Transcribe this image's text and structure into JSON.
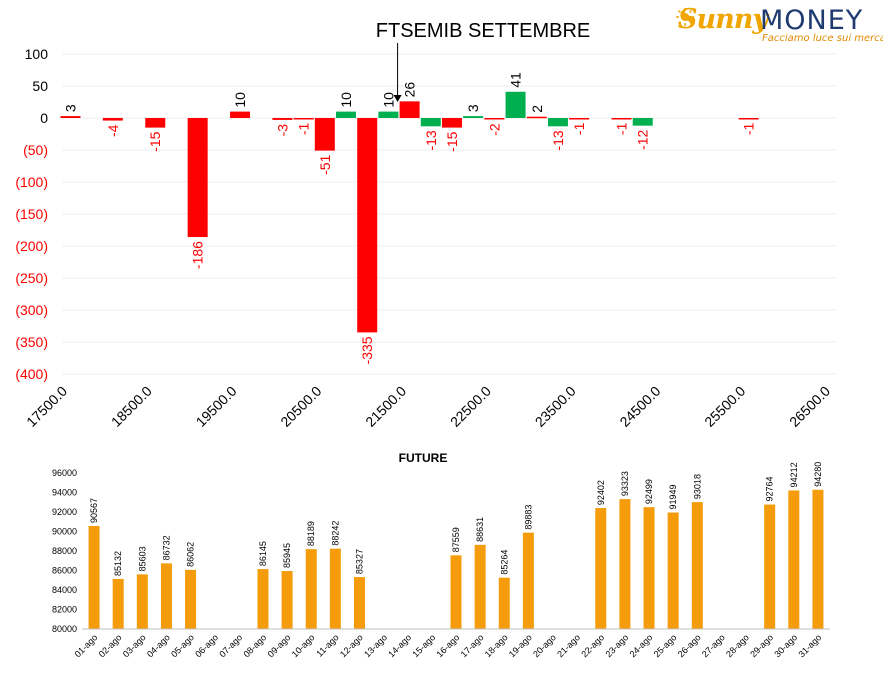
{
  "logo": {
    "brand_left": "Sunny",
    "brand_right": "MONEY",
    "tagline": "Facciamo luce sui mercati",
    "colors": {
      "sunny": "#f0a500",
      "money": "#1f3b70",
      "tagline": "#e08a00"
    }
  },
  "chart_data": [
    {
      "type": "bar",
      "title": "FTSEMIB SETTEMBRE",
      "xlabel": "",
      "ylabel": "",
      "xlim": [
        17500,
        26500
      ],
      "ylim": [
        -400,
        100
      ],
      "x_ticks": [
        "17500.0",
        "18500.0",
        "19500.0",
        "20500.0",
        "21500.0",
        "22500.0",
        "23500.0",
        "24500.0",
        "25500.0",
        "26500.0"
      ],
      "y_ticks": [
        {
          "value": 100,
          "label": "100"
        },
        {
          "value": 50,
          "label": "50"
        },
        {
          "value": 0,
          "label": "0"
        },
        {
          "value": -50,
          "label": "(50)"
        },
        {
          "value": -100,
          "label": "(100)"
        },
        {
          "value": -150,
          "label": "(150)"
        },
        {
          "value": -200,
          "label": "(200)"
        },
        {
          "value": -250,
          "label": "(250)"
        },
        {
          "value": -300,
          "label": "(300)"
        },
        {
          "value": -350,
          "label": "(350)"
        },
        {
          "value": -400,
          "label": "(400)"
        }
      ],
      "grid": true,
      "annotation": {
        "text": "FTSEMIB SETTEMBRE",
        "points_to_x": 21600
      },
      "colors": {
        "red": "#ff0000",
        "green": "#00b050",
        "negative_label": "#ff0000",
        "positive_label": "#000000"
      },
      "bars": [
        {
          "x": 17600,
          "value": 3,
          "label": "3",
          "color": "red"
        },
        {
          "x": 18100,
          "value": -4,
          "label": "-4",
          "color": "red"
        },
        {
          "x": 18600,
          "value": -15,
          "label": "-15",
          "color": "red"
        },
        {
          "x": 19100,
          "value": -186,
          "label": "-186",
          "color": "red"
        },
        {
          "x": 19600,
          "value": 10,
          "label": "10",
          "color": "red"
        },
        {
          "x": 20100,
          "value": -3,
          "label": "-3",
          "color": "red"
        },
        {
          "x": 20350,
          "value": -1,
          "label": "-1",
          "color": "red"
        },
        {
          "x": 20600,
          "value": -51,
          "label": "-51",
          "color": "red"
        },
        {
          "x": 20850,
          "value": 10,
          "label": "10",
          "color": "green"
        },
        {
          "x": 21100,
          "value": -335,
          "label": "-335",
          "color": "red"
        },
        {
          "x": 21350,
          "value": 10,
          "label": "10",
          "color": "green"
        },
        {
          "x": 21600,
          "value": 26,
          "label": "26",
          "color": "red"
        },
        {
          "x": 21850,
          "value": -13,
          "label": "-13",
          "color": "green"
        },
        {
          "x": 22100,
          "value": -15,
          "label": "-15",
          "color": "red"
        },
        {
          "x": 22350,
          "value": 3,
          "label": "3",
          "color": "green"
        },
        {
          "x": 22600,
          "value": -2,
          "label": "-2",
          "color": "red"
        },
        {
          "x": 22850,
          "value": 41,
          "label": "41",
          "color": "green"
        },
        {
          "x": 23100,
          "value": 2,
          "label": "2",
          "color": "red"
        },
        {
          "x": 23350,
          "value": -13,
          "label": "-13",
          "color": "green"
        },
        {
          "x": 23600,
          "value": -1,
          "label": "-1",
          "color": "red"
        },
        {
          "x": 24100,
          "value": -1,
          "label": "-1",
          "color": "red"
        },
        {
          "x": 24350,
          "value": -12,
          "label": "-12",
          "color": "green"
        },
        {
          "x": 25600,
          "value": -1,
          "label": "-1",
          "color": "red"
        }
      ]
    },
    {
      "type": "bar",
      "title": "FUTURE",
      "xlabel": "",
      "ylabel": "",
      "ylim": [
        80000,
        96000
      ],
      "y_ticks": [
        "80000",
        "82000",
        "84000",
        "86000",
        "88000",
        "90000",
        "92000",
        "94000",
        "96000"
      ],
      "bar_color": "#f59c0c",
      "grid": false,
      "categories": [
        "01-ago",
        "02-ago",
        "03-ago",
        "04-ago",
        "05-ago",
        "06-ago",
        "07-ago",
        "08-ago",
        "09-ago",
        "10-ago",
        "11-ago",
        "12-ago",
        "13-ago",
        "14-ago",
        "15-ago",
        "16-ago",
        "17-ago",
        "18-ago",
        "19-ago",
        "20-ago",
        "21-ago",
        "22-ago",
        "23-ago",
        "24-ago",
        "25-ago",
        "26-ago",
        "27-ago",
        "28-ago",
        "29-ago",
        "30-ago",
        "31-ago"
      ],
      "values": [
        90567,
        85132,
        85603,
        86732,
        86062,
        null,
        null,
        86145,
        85945,
        88189,
        88242,
        85327,
        null,
        null,
        null,
        87559,
        88631,
        85264,
        89883,
        null,
        null,
        92402,
        93323,
        92499,
        91949,
        93018,
        null,
        null,
        92764,
        94212,
        94280
      ],
      "value_labels": [
        "90567",
        "85132",
        "85603",
        "86732",
        "86062",
        "",
        "",
        "86145",
        "85945",
        "88189",
        "88242",
        "85327",
        "",
        "",
        "",
        "87559",
        "88631",
        "85264",
        "89883",
        "",
        "",
        "92402",
        "93323",
        "92499",
        "91949",
        "93018",
        "",
        "",
        "92764",
        "94212",
        "94280"
      ]
    }
  ]
}
